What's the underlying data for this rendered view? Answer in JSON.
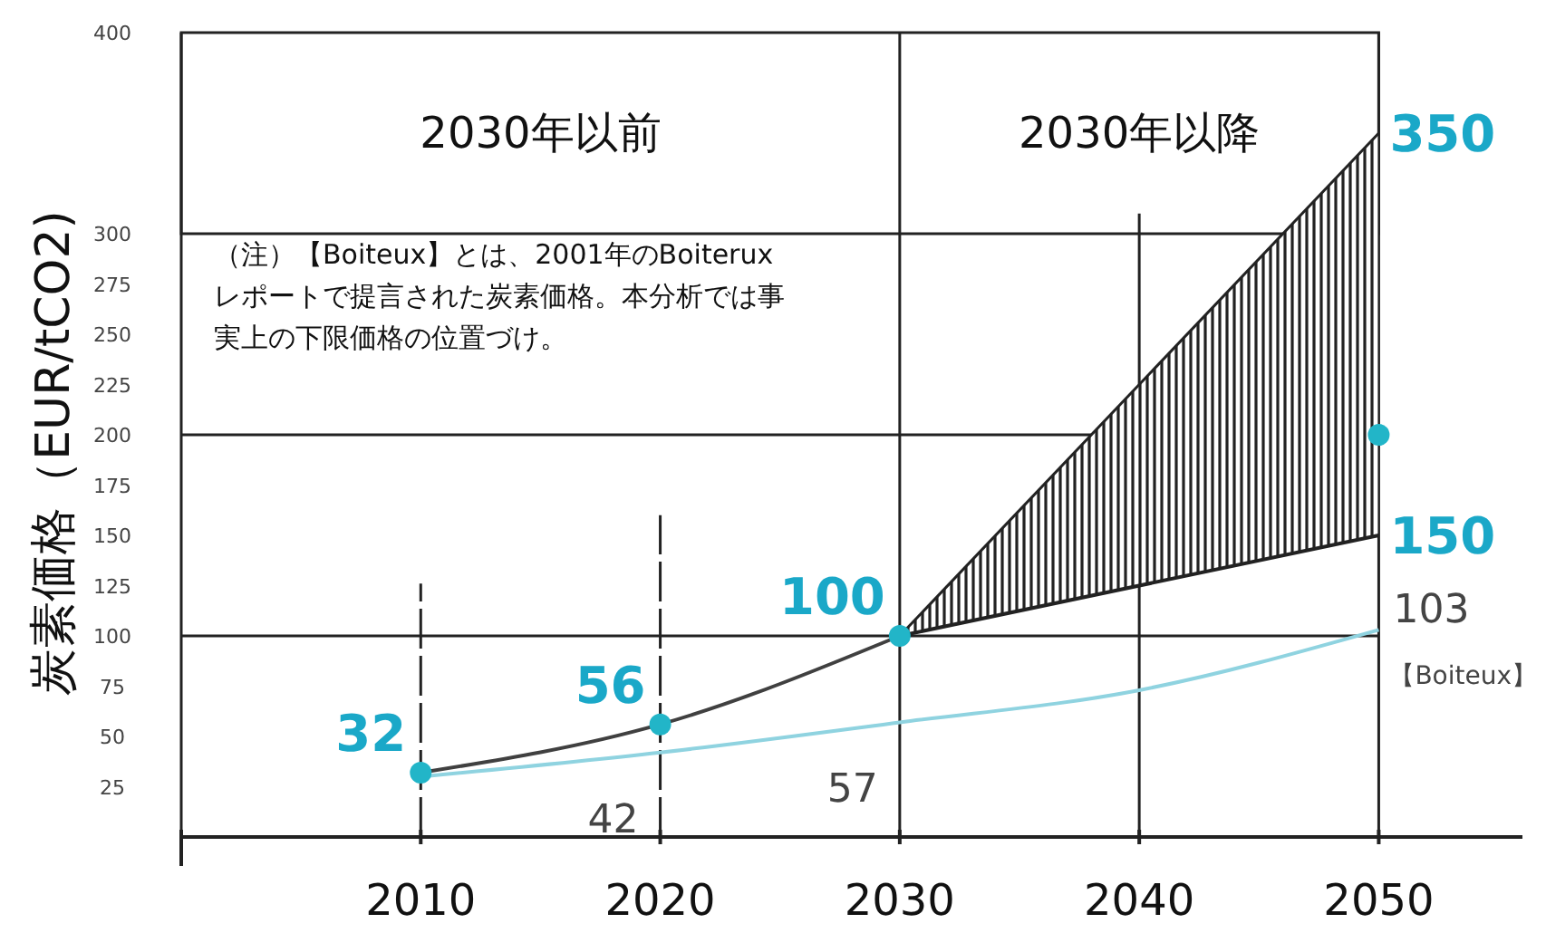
{
  "chart_data": {
    "type": "line",
    "ylabel": "炭素価格（EUR/tCO2)",
    "xlim": [
      2000,
      2056
    ],
    "xticks": [
      {
        "value": 2000,
        "label": null
      },
      2010,
      2020,
      2030,
      2040,
      2050
    ],
    "ylim": [
      0,
      400
    ],
    "yticks": [
      25,
      50,
      75,
      100,
      125,
      150,
      175,
      200,
      225,
      250,
      275,
      300,
      400
    ],
    "grid": "x",
    "series": [
      {
        "x": [
          2010,
          2020,
          2030
        ],
        "values": [
          32,
          56,
          100
        ],
        "color": "#404040"
      },
      {
        "name": "【Boiteux】",
        "x": [
          2010,
          2020,
          2030,
          2040,
          2050
        ],
        "values": [
          30,
          42,
          57,
          73,
          103
        ],
        "color": "#8fd3e0",
        "value_labels": [
          null,
          "42",
          "57",
          null,
          "103"
        ]
      },
      {
        "x": [
          2030,
          2050
        ],
        "values": [
          100,
          350
        ],
        "lower": [
          100,
          150
        ],
        "upper": [
          100,
          350
        ],
        "color": "#222222",
        "value_labels": [
          null,
          "350"
        ]
      },
      {
        "x": [
          2030,
          2050
        ],
        "values": [
          100,
          150
        ],
        "color": "#222222",
        "value_labels": [
          null,
          "150"
        ]
      },
      {
        "type": "scatter",
        "marker": "circle",
        "x": [
          2010,
          2020,
          2030
        ],
        "values": [
          32,
          56,
          100
        ],
        "color": "#22b5c8",
        "value_labels": [
          "32",
          "56",
          "100"
        ]
      },
      {
        "type": "scatter",
        "marker": "circle",
        "x": [
          2050
        ],
        "values": [
          200
        ],
        "color": "#22b5c8"
      }
    ],
    "ref_lines": [
      {
        "axis": "y",
        "value": 100
      },
      {
        "axis": "y",
        "value": 200
      },
      {
        "axis": "x",
        "value": 2010,
        "line_style": "dashed"
      }
    ],
    "annotations": [
      "2030年以前",
      "2030年以降",
      "（注）【Boiteux】とは、2001年のBoiteruxレポートで提言された炭素価格。本分析では事実上の下限価格の位置づけ。"
    ]
  }
}
